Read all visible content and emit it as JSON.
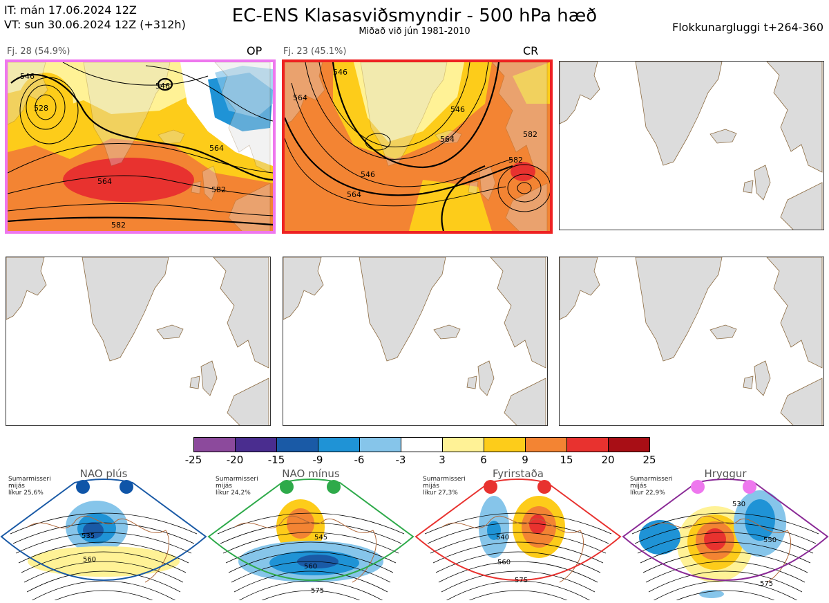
{
  "header": {
    "it_line": "IT: mán 17.06.2024 12Z",
    "vt_line": "VT: sun 30.06.2024 12Z  (+312h)",
    "title": "EC-ENS Klasasviðsmyndir - 500 hPa hæð",
    "subtitle": "Miðað við jún 1981-2010",
    "window": "Flokkunargluggi t+264-360"
  },
  "clusters": [
    {
      "caption": "Fj. 28 (54.9%)",
      "tag": "OP",
      "frame_color": "#ee77ee",
      "contour_labels": [
        "546",
        "528",
        "546",
        "564",
        "564",
        "582",
        "582"
      ]
    },
    {
      "caption": "Fj. 23 (45.1%)",
      "tag": "CR",
      "frame_color": "#ee2222",
      "contour_labels": [
        "546",
        "564",
        "546",
        "564",
        "582",
        "546",
        "564",
        "582"
      ]
    }
  ],
  "colorbar": {
    "ticks": [
      "-25",
      "-20",
      "-15",
      "-9",
      "-6",
      "-3",
      "3",
      "6",
      "9",
      "15",
      "20",
      "25"
    ],
    "colors": [
      "#8c4a9c",
      "#4a2d8f",
      "#1a5aa6",
      "#1f93d6",
      "#86c5ea",
      "#ffffff",
      "#fff296",
      "#fdcc1a",
      "#f38433",
      "#e8322f",
      "#a80e15"
    ]
  },
  "regimes": [
    {
      "title": "NAO plús",
      "note": [
        "Sumarmisseri",
        "mijás",
        "líkur 25,6%"
      ],
      "color": "#1a5aa6",
      "labels": [
        "535",
        "560"
      ]
    },
    {
      "title": "NAO mínus",
      "note": [
        "Sumarmisseri",
        "mijás",
        "líkur 24,2%"
      ],
      "color": "#2eaa4a",
      "labels": [
        "545",
        "560",
        "575"
      ]
    },
    {
      "title": "Fyrirstaða",
      "note": [
        "Sumarmisseri",
        "mijás",
        "líkur 27,3%"
      ],
      "color": "#e8322f",
      "labels": [
        "540",
        "560",
        "575"
      ]
    },
    {
      "title": "Hryggur",
      "note": [
        "Sumarmisseri",
        "mijás",
        "líkur 22,9%"
      ],
      "color": "#8a2a96",
      "labels": [
        "530",
        "550",
        "575"
      ]
    }
  ]
}
